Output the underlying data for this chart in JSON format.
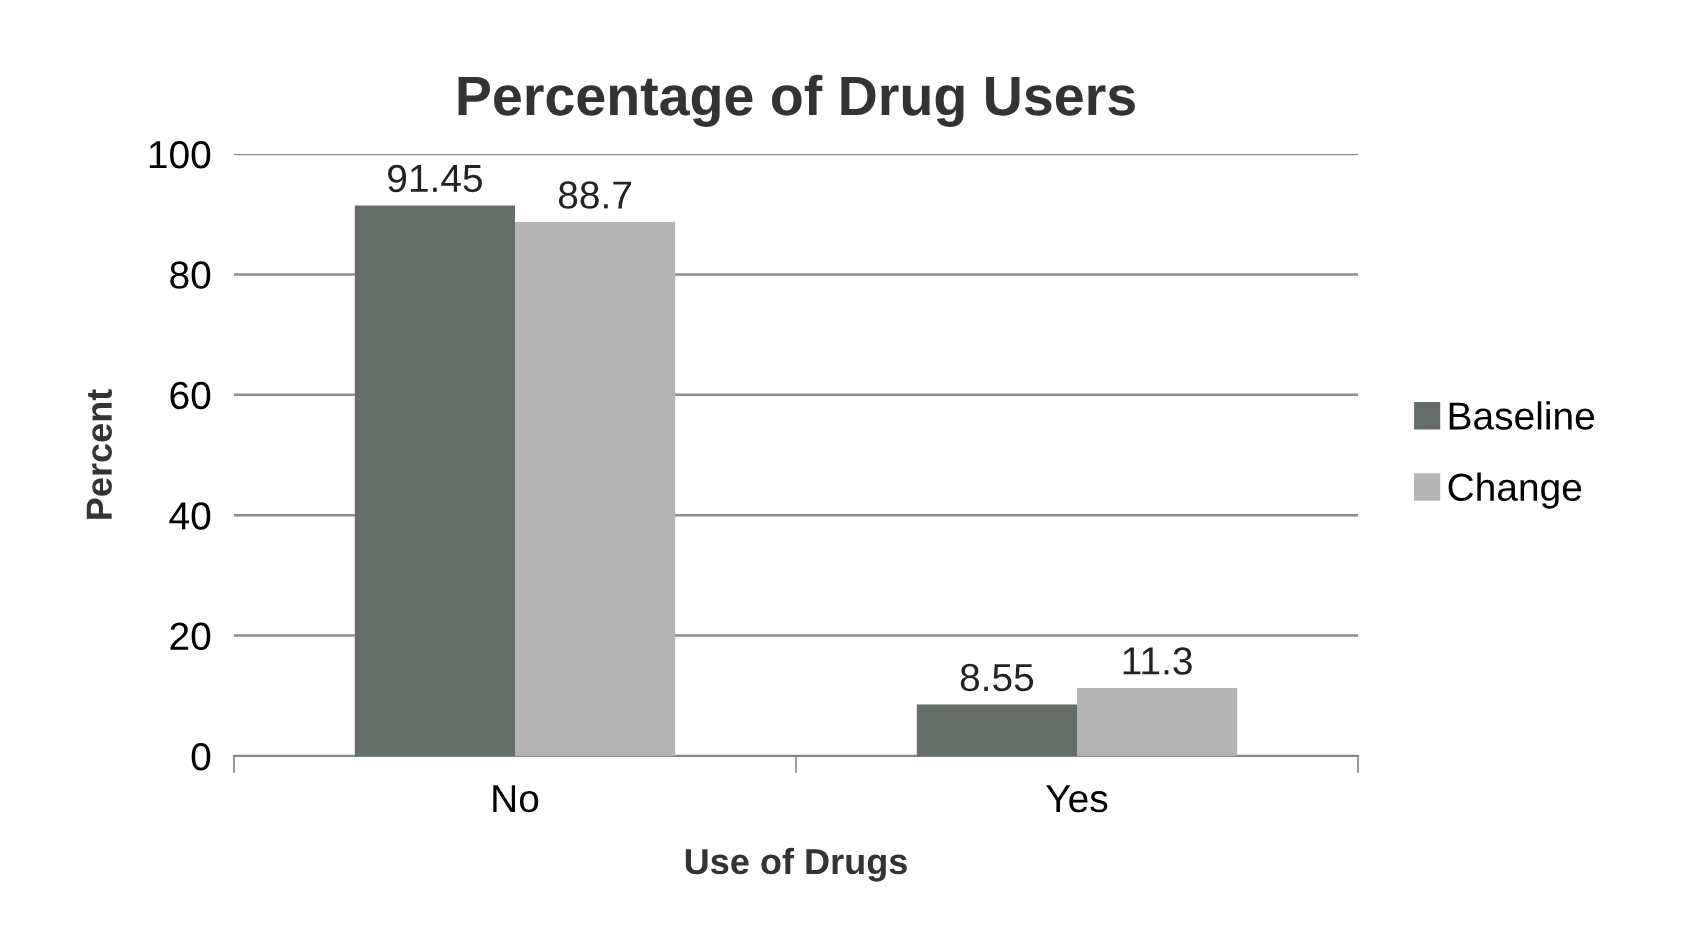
{
  "chart_data": {
    "type": "bar",
    "title": "Percentage of Drug Users",
    "xlabel": "Use of Drugs",
    "ylabel": "Percent",
    "categories": [
      "No",
      "Yes"
    ],
    "series": [
      {
        "name": "Baseline",
        "color": "#646e69",
        "values": [
          91.45,
          8.55
        ]
      },
      {
        "name": "Change",
        "color": "#b4b4b4",
        "values": [
          88.7,
          11.3
        ]
      }
    ],
    "ylim": [
      0,
      100
    ],
    "yticks": [
      0,
      20,
      40,
      60,
      80,
      100
    ],
    "grid": "y",
    "legend": "right",
    "data_labels": true
  }
}
